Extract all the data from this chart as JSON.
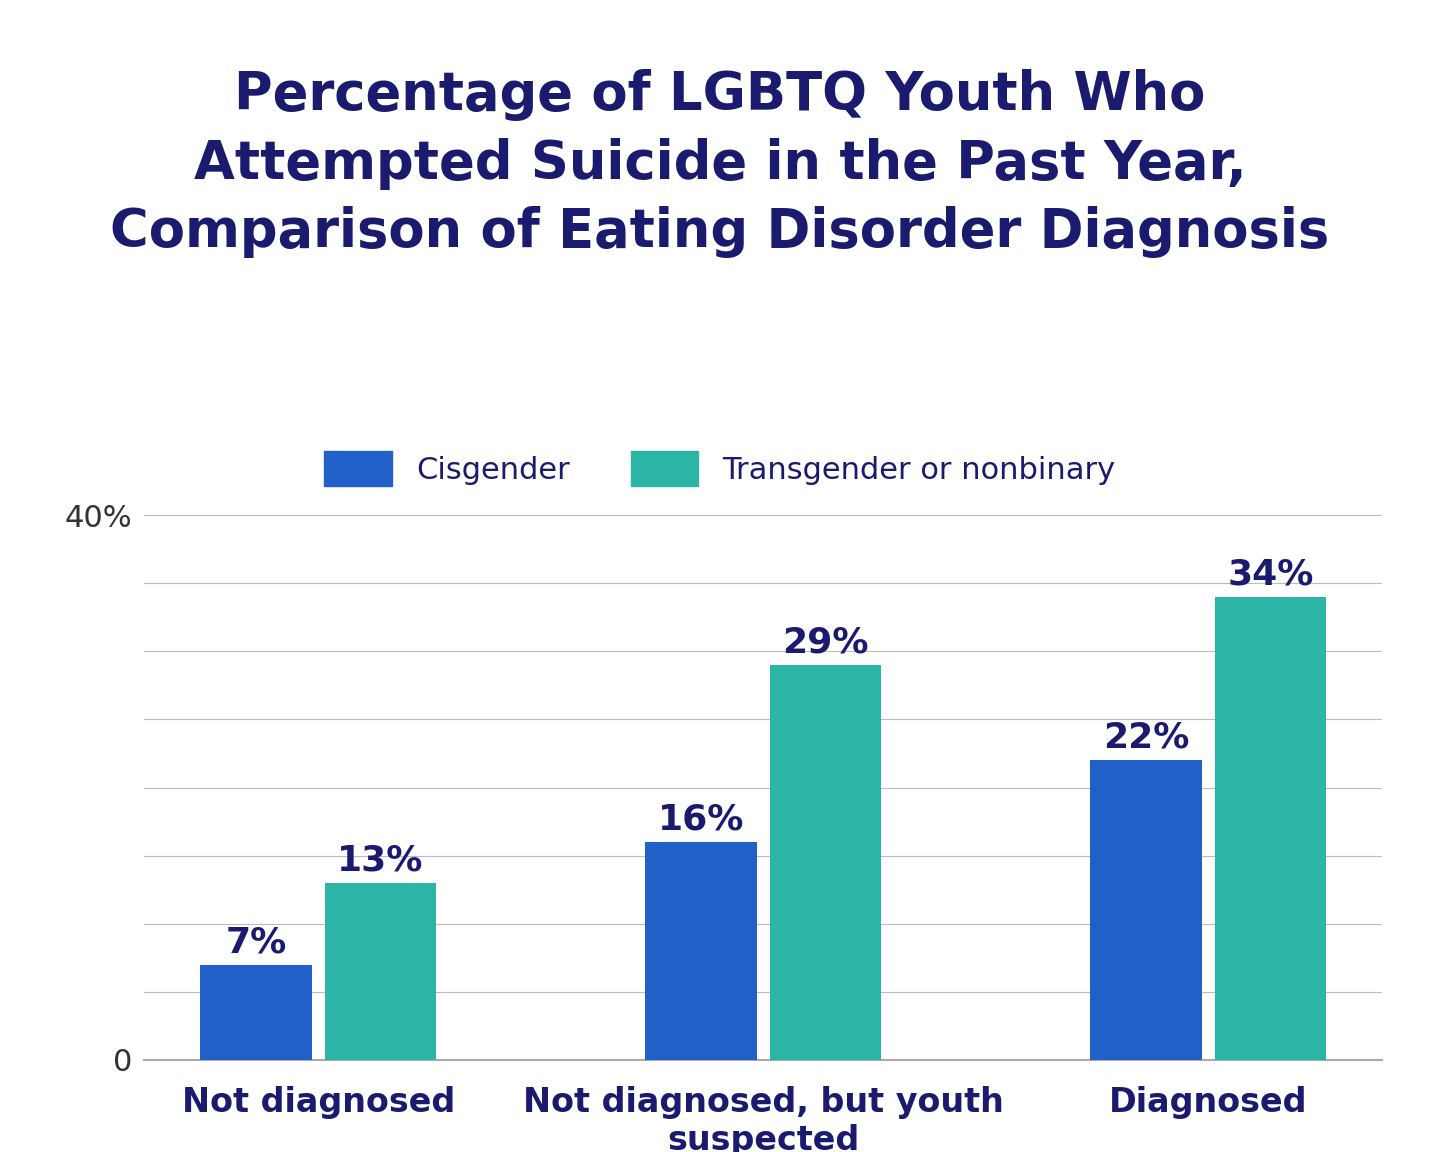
{
  "title": "Percentage of LGBTQ Youth Who\nAttempted Suicide in the Past Year,\nComparison of Eating Disorder Diagnosis",
  "title_color": "#1a1a6e",
  "title_fontsize": 38,
  "background_color": "#ffffff",
  "categories": [
    "Not diagnosed",
    "Not diagnosed, but youth\nsuspected",
    "Diagnosed"
  ],
  "cisgender_values": [
    7,
    16,
    22
  ],
  "transgender_values": [
    13,
    29,
    34
  ],
  "cisgender_color": "#2060c8",
  "transgender_color": "#2ab5a5",
  "bar_labels_cisgender": [
    "7%",
    "16%",
    "22%"
  ],
  "bar_labels_transgender": [
    "13%",
    "29%",
    "34%"
  ],
  "legend_labels": [
    "Cisgender",
    "Transgender or nonbinary"
  ],
  "ylim": [
    0,
    44
  ],
  "grid_color": "#bbbbbb",
  "axis_color": "#aaaaaa",
  "tick_fontsize": 22,
  "bar_label_fontsize": 26,
  "legend_fontsize": 22,
  "category_fontsize": 24,
  "bar_width": 0.25,
  "bar_gap": 0.03
}
